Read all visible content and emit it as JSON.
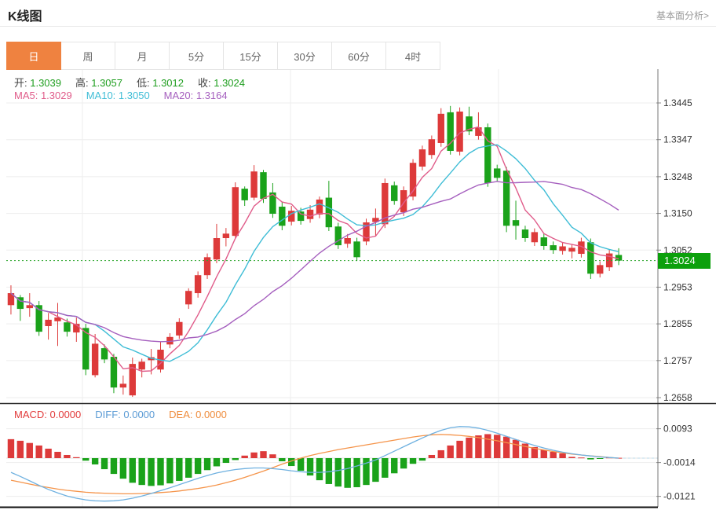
{
  "header": {
    "title": "K线图",
    "link_label": "基本面分析>"
  },
  "tabs": {
    "active": "日",
    "items": [
      "日",
      "周",
      "月",
      "5分",
      "15分",
      "30分",
      "60分",
      "4时"
    ]
  },
  "ohlc_legend": {
    "items": [
      {
        "label": "开:",
        "value": "1.3039"
      },
      {
        "label": "高:",
        "value": "1.3057"
      },
      {
        "label": "低:",
        "value": "1.3012"
      },
      {
        "label": "收:",
        "value": "1.3024"
      }
    ]
  },
  "ma_legend": {
    "items": [
      {
        "label": "MA5:",
        "value": "1.3029",
        "color": "#e05c8a"
      },
      {
        "label": "MA10:",
        "value": "1.3050",
        "color": "#3fbdd6"
      },
      {
        "label": "MA20:",
        "value": "1.3164",
        "color": "#a55fbe"
      }
    ]
  },
  "macd_legend": {
    "items": [
      {
        "label": "MACD:",
        "value": "0.0000",
        "color": "#e23b3b"
      },
      {
        "label": "DIFF:",
        "value": "0.0000",
        "color": "#5b9bd5"
      },
      {
        "label": "DEA:",
        "value": "0.0000",
        "color": "#ef8c3c"
      }
    ]
  },
  "price_badge": {
    "value": "1.3024",
    "bg": "#0ca00c"
  },
  "chart_data": {
    "type": "candlestick",
    "title": "K线图",
    "panels": [
      "price",
      "macd"
    ],
    "price_panel": {
      "y_ticks": [
        1.3445,
        1.3347,
        1.3248,
        1.315,
        1.3052,
        1.2953,
        1.2855,
        1.2757,
        1.2658
      ],
      "current_price": 1.3024,
      "up_color": "#dd3a3a",
      "down_color": "#1aa21a",
      "grid_color": "#ededed",
      "ma_periods": [
        5,
        10,
        20
      ],
      "ma_colors": [
        "#e05c8a",
        "#3fbdd6",
        "#a55fbe"
      ],
      "candles_ohlc": [
        [
          1.2905,
          1.2958,
          1.288,
          1.2937
        ],
        [
          1.2926,
          1.2932,
          1.2863,
          1.2895
        ],
        [
          1.2897,
          1.2937,
          1.2874,
          1.2905
        ],
        [
          1.2905,
          1.2916,
          1.2823,
          1.2834
        ],
        [
          1.2849,
          1.2884,
          1.2813,
          1.2866
        ],
        [
          1.2862,
          1.2911,
          1.2796,
          1.2872
        ],
        [
          1.2859,
          1.2869,
          1.2821,
          1.2834
        ],
        [
          1.2832,
          1.2872,
          1.2807,
          1.2855
        ],
        [
          1.2844,
          1.2855,
          1.2718,
          1.2733
        ],
        [
          1.2718,
          1.2828,
          1.2712,
          1.2802
        ],
        [
          1.279,
          1.28,
          1.275,
          1.276
        ],
        [
          1.2767,
          1.2775,
          1.267,
          1.2685
        ],
        [
          1.2685,
          1.2717,
          1.2666,
          1.2695
        ],
        [
          1.2664,
          1.2765,
          1.266,
          1.2748
        ],
        [
          1.2733,
          1.2762,
          1.2712,
          1.2754
        ],
        [
          1.2758,
          1.2788,
          1.272,
          1.2766
        ],
        [
          1.2733,
          1.2806,
          1.2725,
          1.2786
        ],
        [
          1.28,
          1.283,
          1.279,
          1.282
        ],
        [
          1.2824,
          1.287,
          1.2815,
          1.286
        ],
        [
          1.2907,
          1.295,
          1.2895,
          1.2943
        ],
        [
          1.2937,
          1.2995,
          1.2925,
          1.2985
        ],
        [
          1.2985,
          1.3043,
          1.2975,
          1.3033
        ],
        [
          1.3027,
          1.3122,
          1.3017,
          1.3084
        ],
        [
          1.3084,
          1.3111,
          1.3062,
          1.3096
        ],
        [
          1.309,
          1.3233,
          1.3085,
          1.322
        ],
        [
          1.3216,
          1.3222,
          1.317,
          1.3185
        ],
        [
          1.3192,
          1.3279,
          1.3185,
          1.3262
        ],
        [
          1.326,
          1.3266,
          1.3178,
          1.3189
        ],
        [
          1.3206,
          1.3231,
          1.3138,
          1.3149
        ],
        [
          1.3168,
          1.318,
          1.3105,
          1.3117
        ],
        [
          1.3128,
          1.317,
          1.3118,
          1.3157
        ],
        [
          1.3155,
          1.3165,
          1.312,
          1.313
        ],
        [
          1.3135,
          1.3172,
          1.3125,
          1.316
        ],
        [
          1.3147,
          1.3195,
          1.3137,
          1.3187
        ],
        [
          1.3192,
          1.3237,
          1.3103,
          1.3113
        ],
        [
          1.3115,
          1.3125,
          1.3055,
          1.3065
        ],
        [
          1.3069,
          1.3095,
          1.3058,
          1.3084
        ],
        [
          1.3075,
          1.3085,
          1.3023,
          1.3033
        ],
        [
          1.3075,
          1.3136,
          1.3065,
          1.3126
        ],
        [
          1.3127,
          1.3163,
          1.309,
          1.3138
        ],
        [
          1.3121,
          1.3243,
          1.3111,
          1.3231
        ],
        [
          1.3225,
          1.3235,
          1.3173,
          1.3183
        ],
        [
          1.3153,
          1.3222,
          1.3143,
          1.3212
        ],
        [
          1.3195,
          1.3295,
          1.3185,
          1.3285
        ],
        [
          1.3275,
          1.3331,
          1.3265,
          1.3321
        ],
        [
          1.3306,
          1.3358,
          1.3296,
          1.3348
        ],
        [
          1.3338,
          1.3431,
          1.3328,
          1.3416
        ],
        [
          1.342,
          1.3437,
          1.3307,
          1.3317
        ],
        [
          1.3315,
          1.3433,
          1.3305,
          1.3422
        ],
        [
          1.3409,
          1.3435,
          1.3359,
          1.3369
        ],
        [
          1.3357,
          1.342,
          1.3347,
          1.338
        ],
        [
          1.338,
          1.339,
          1.3221,
          1.3231
        ],
        [
          1.327,
          1.328,
          1.3235,
          1.3245
        ],
        [
          1.3264,
          1.3274,
          1.31,
          1.3117
        ],
        [
          1.3132,
          1.3184,
          1.308,
          1.3117
        ],
        [
          1.3107,
          1.3117,
          1.3074,
          1.3084
        ],
        [
          1.3073,
          1.311,
          1.3063,
          1.31
        ],
        [
          1.3086,
          1.3096,
          1.3053,
          1.3063
        ],
        [
          1.3065,
          1.3075,
          1.3042,
          1.3052
        ],
        [
          1.305,
          1.3072,
          1.304,
          1.3062
        ],
        [
          1.3048,
          1.3068,
          1.303,
          1.3058
        ],
        [
          1.3042,
          1.3085,
          1.3032,
          1.3075
        ],
        [
          1.3073,
          1.3083,
          1.2975,
          1.2989
        ],
        [
          1.2989,
          1.3022,
          1.2979,
          1.3012
        ],
        [
          1.3006,
          1.3053,
          1.2996,
          1.3043
        ],
        [
          1.3039,
          1.3057,
          1.3012,
          1.3024
        ]
      ]
    },
    "macd_panel": {
      "y_ticks": [
        0.0093,
        -0.0014,
        -0.0121
      ],
      "hist_pos_color": "#dd3a3a",
      "hist_neg_color": "#1aa21a",
      "diff_color": "#6fb1e0",
      "dea_color": "#f5944a",
      "hist": [
        0.006,
        0.0055,
        0.0048,
        0.004,
        0.003,
        0.002,
        0.001,
        0.0003,
        -0.0008,
        -0.002,
        -0.0035,
        -0.005,
        -0.0065,
        -0.0078,
        -0.0085,
        -0.0088,
        -0.0086,
        -0.008,
        -0.0072,
        -0.0062,
        -0.005,
        -0.0038,
        -0.0026,
        -0.0015,
        -0.0006,
        0.0008,
        0.0018,
        0.0022,
        0.0012,
        -0.001,
        -0.0025,
        -0.004,
        -0.0055,
        -0.007,
        -0.0082,
        -0.009,
        -0.0094,
        -0.0092,
        -0.0085,
        -0.0075,
        -0.0062,
        -0.0048,
        -0.0033,
        -0.0018,
        -0.0008,
        0.001,
        0.0025,
        0.004,
        0.0055,
        0.0065,
        0.0072,
        0.0076,
        0.0074,
        0.0068,
        0.0058,
        0.0046,
        0.0035,
        0.0026,
        0.002,
        0.0015,
        0.0004,
        0.0002,
        -0.0004,
        -0.0002,
        0.0002,
        0.0001
      ],
      "diff": [
        -0.0045,
        -0.0058,
        -0.0072,
        -0.0086,
        -0.0099,
        -0.011,
        -0.012,
        -0.0127,
        -0.0132,
        -0.0135,
        -0.0136,
        -0.0135,
        -0.0132,
        -0.0127,
        -0.012,
        -0.0112,
        -0.0103,
        -0.0094,
        -0.0084,
        -0.0074,
        -0.0064,
        -0.0055,
        -0.0047,
        -0.0041,
        -0.0036,
        -0.0033,
        -0.0031,
        -0.0031,
        -0.0033,
        -0.0036,
        -0.004,
        -0.0043,
        -0.0045,
        -0.0045,
        -0.0043,
        -0.0039,
        -0.0033,
        -0.0025,
        -0.0016,
        -0.0006,
        0.0008,
        0.0022,
        0.0036,
        0.005,
        0.0064,
        0.0077,
        0.0088,
        0.0096,
        0.01,
        0.0099,
        0.0095,
        0.0088,
        0.0079,
        0.0069,
        0.0059,
        0.0049,
        0.004,
        0.0032,
        0.0025,
        0.0019,
        0.0014,
        0.001,
        0.0007,
        0.0004,
        0.0002,
        0.0
      ],
      "dea": [
        -0.007,
        -0.0076,
        -0.0082,
        -0.0088,
        -0.0093,
        -0.0098,
        -0.0102,
        -0.0105,
        -0.0108,
        -0.011,
        -0.0111,
        -0.0112,
        -0.0113,
        -0.0113,
        -0.0112,
        -0.0111,
        -0.0109,
        -0.0107,
        -0.0104,
        -0.01,
        -0.0096,
        -0.0091,
        -0.0085,
        -0.0078,
        -0.007,
        -0.0061,
        -0.0051,
        -0.0041,
        -0.003,
        -0.0019,
        -0.0009,
        0.0,
        0.0008,
        0.0015,
        0.0021,
        0.0027,
        0.0032,
        0.0037,
        0.0042,
        0.0047,
        0.0052,
        0.0057,
        0.0062,
        0.0067,
        0.0071,
        0.0074,
        0.0075,
        0.0074,
        0.0072,
        0.0069,
        0.0065,
        0.006,
        0.0055,
        0.0049,
        0.0043,
        0.0037,
        0.0031,
        0.0026,
        0.0021,
        0.0017,
        0.0013,
        0.001,
        0.0007,
        0.0005,
        0.0002,
        0.0
      ]
    }
  }
}
